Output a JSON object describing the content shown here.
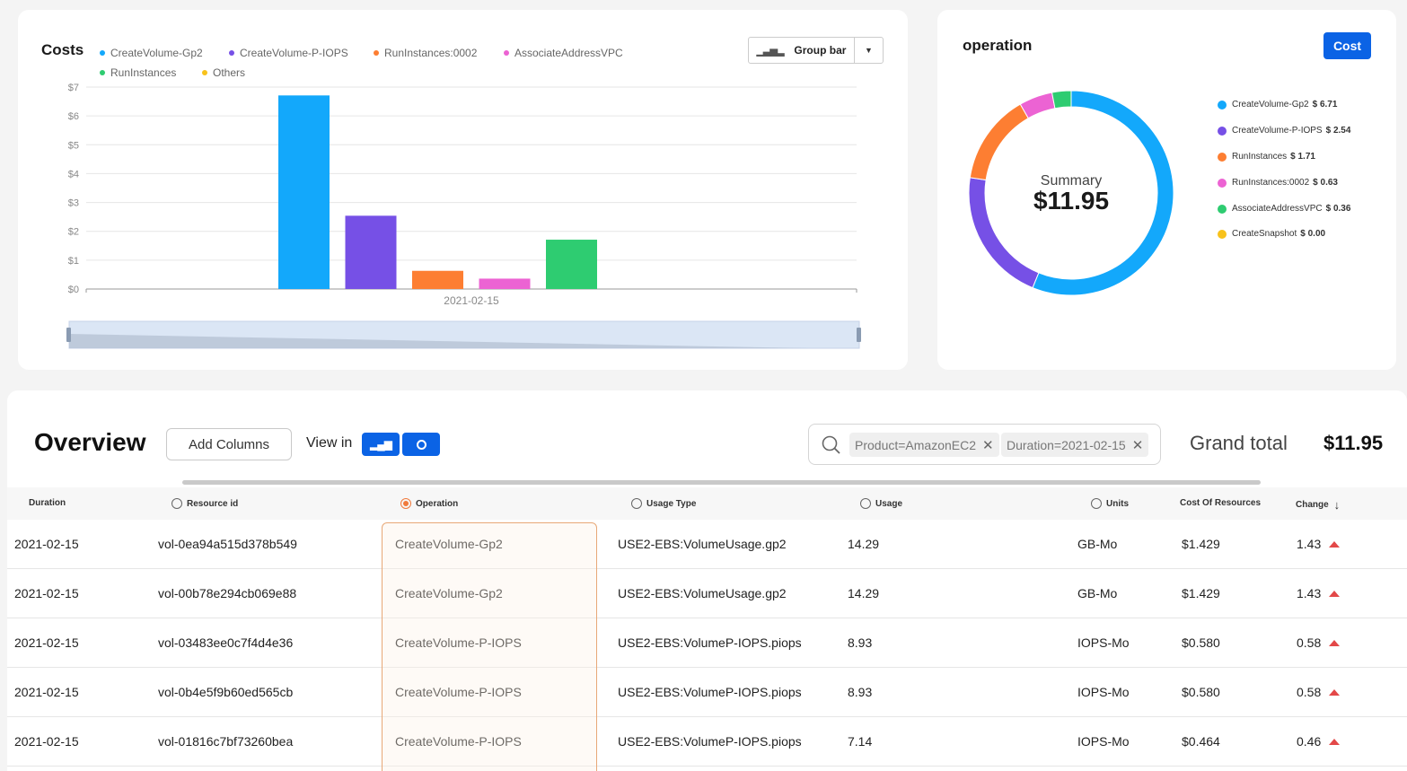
{
  "costs": {
    "title": "Costs",
    "legend": [
      {
        "label": "CreateVolume-Gp2",
        "color": "#13a8fb"
      },
      {
        "label": "CreateVolume-P-IOPS",
        "color": "#7650e6"
      },
      {
        "label": "RunInstances:0002",
        "color": "#fd7e32"
      },
      {
        "label": "AssociateAddressVPC",
        "color": "#ec63d3"
      },
      {
        "label": "RunInstances",
        "color": "#2ecc71"
      },
      {
        "label": "Others",
        "color": "#f8c21b"
      }
    ],
    "group_button": {
      "label": "Group bar"
    }
  },
  "chart_data": [
    {
      "type": "bar",
      "categories": [
        "2021-02-15"
      ],
      "series": [
        {
          "name": "CreateVolume-Gp2",
          "values": [
            6.71
          ],
          "color": "#13a8fb"
        },
        {
          "name": "CreateVolume-P-IOPS",
          "values": [
            2.54
          ],
          "color": "#7650e6"
        },
        {
          "name": "RunInstances:0002",
          "values": [
            0.63
          ],
          "color": "#fd7e32"
        },
        {
          "name": "AssociateAddressVPC",
          "values": [
            0.36
          ],
          "color": "#ec63d3"
        },
        {
          "name": "RunInstances",
          "values": [
            1.71
          ],
          "color": "#2ecc71"
        }
      ],
      "yticks": [
        "$0",
        "$1",
        "$2",
        "$3",
        "$4",
        "$5",
        "$6",
        "$7"
      ],
      "ylim": [
        0,
        7
      ],
      "grid": true
    },
    {
      "type": "pie",
      "labels": [
        "CreateVolume-Gp2",
        "CreateVolume-P-IOPS",
        "RunInstances",
        "RunInstances:0002",
        "AssociateAddressVPC",
        "CreateSnapshot"
      ],
      "values": [
        6.71,
        2.54,
        1.71,
        0.63,
        0.36,
        0.0
      ],
      "colors": [
        "#13a8fb",
        "#7650e6",
        "#fd7e32",
        "#ec63d3",
        "#2ecc71",
        "#f8c21b"
      ]
    }
  ],
  "operation": {
    "title": "operation",
    "cost_button": "Cost",
    "summary_label": "Summary",
    "summary_value": "$11.95",
    "legend": [
      {
        "label": "CreateVolume-Gp2",
        "value": "$ 6.71",
        "color": "#13a8fb"
      },
      {
        "label": "CreateVolume-P-IOPS",
        "value": "$ 2.54",
        "color": "#7650e6"
      },
      {
        "label": "RunInstances",
        "value": "$ 1.71",
        "color": "#fd7e32"
      },
      {
        "label": "RunInstances:0002",
        "value": "$ 0.63",
        "color": "#ec63d3"
      },
      {
        "label": "AssociateAddressVPC",
        "value": "$ 0.36",
        "color": "#2ecc71"
      },
      {
        "label": "CreateSnapshot",
        "value": "$ 0.00",
        "color": "#f8c21b"
      }
    ]
  },
  "overview": {
    "title": "Overview",
    "add_columns": "Add Columns",
    "view_in": "View in",
    "filters": [
      "Product=AmazonEC2",
      "Duration=2021-02-15"
    ],
    "grand_total_label": "Grand total",
    "grand_total_value": "$11.95",
    "columns": [
      "Duration",
      "Resource id",
      "Operation",
      "Usage Type",
      "Usage",
      "Units",
      "Cost Of Resources",
      "Change"
    ],
    "rows": [
      [
        "2021-02-15",
        "vol-0ea94a515d378b549",
        "CreateVolume-Gp2",
        "USE2-EBS:VolumeUsage.gp2",
        "14.29",
        "GB-Mo",
        "$1.429",
        "1.43"
      ],
      [
        "2021-02-15",
        "vol-00b78e294cb069e88",
        "CreateVolume-Gp2",
        "USE2-EBS:VolumeUsage.gp2",
        "14.29",
        "GB-Mo",
        "$1.429",
        "1.43"
      ],
      [
        "2021-02-15",
        "vol-03483ee0c7f4d4e36",
        "CreateVolume-P-IOPS",
        "USE2-EBS:VolumeP-IOPS.piops",
        "8.93",
        "IOPS-Mo",
        "$0.580",
        "0.58"
      ],
      [
        "2021-02-15",
        "vol-0b4e5f9b60ed565cb",
        "CreateVolume-P-IOPS",
        "USE2-EBS:VolumeP-IOPS.piops",
        "8.93",
        "IOPS-Mo",
        "$0.580",
        "0.58"
      ],
      [
        "2021-02-15",
        "vol-01816c7bf73260bea",
        "CreateVolume-P-IOPS",
        "USE2-EBS:VolumeP-IOPS.piops",
        "7.14",
        "IOPS-Mo",
        "$0.464",
        "0.46"
      ]
    ]
  }
}
